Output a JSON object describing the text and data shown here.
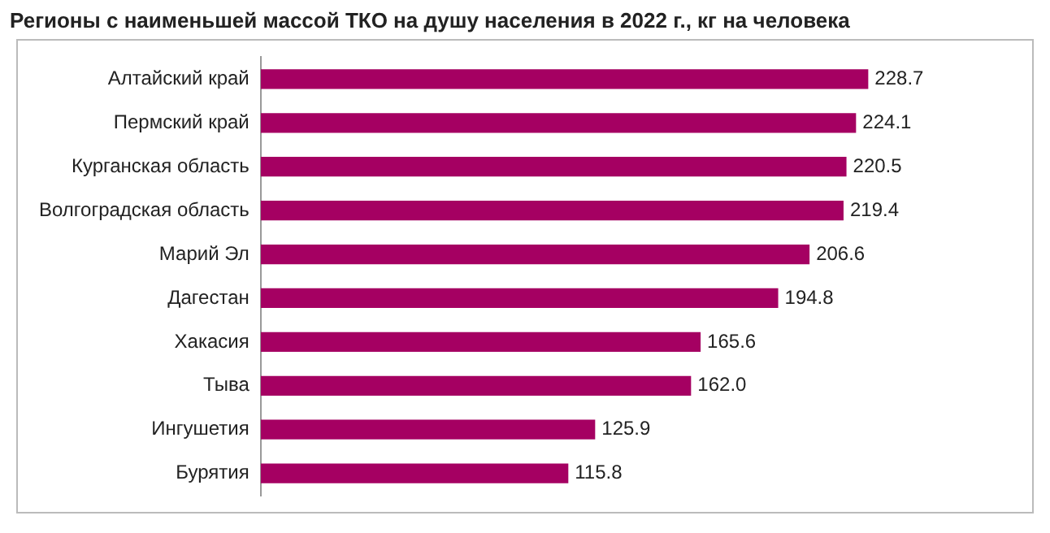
{
  "chart_data": {
    "type": "bar",
    "orientation": "horizontal",
    "title": "Регионы с наименьшей массой ТКО на душу населения в 2022 г., кг на человека",
    "categories": [
      "Алтайский край",
      "Пермский край",
      "Курганская область",
      "Волгоградская область",
      "Марий Эл",
      "Дагестан",
      "Хакасия",
      "Тыва",
      "Ингушетия",
      "Бурятия"
    ],
    "values": [
      228.7,
      224.1,
      220.5,
      219.4,
      206.6,
      194.8,
      165.6,
      162.0,
      125.9,
      115.8
    ],
    "value_labels": [
      "228.7",
      "224.1",
      "220.5",
      "219.4",
      "206.6",
      "194.8",
      "165.6",
      "162.0",
      "125.9",
      "115.8"
    ],
    "color": "#a50062",
    "legend": false
  }
}
